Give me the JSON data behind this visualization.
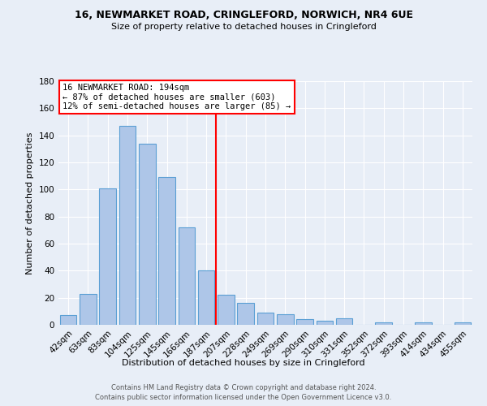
{
  "title": "16, NEWMARKET ROAD, CRINGLEFORD, NORWICH, NR4 6UE",
  "subtitle": "Size of property relative to detached houses in Cringleford",
  "xlabel": "Distribution of detached houses by size in Cringleford",
  "ylabel": "Number of detached properties",
  "categories": [
    "42sqm",
    "63sqm",
    "83sqm",
    "104sqm",
    "125sqm",
    "145sqm",
    "166sqm",
    "187sqm",
    "207sqm",
    "228sqm",
    "249sqm",
    "269sqm",
    "290sqm",
    "310sqm",
    "331sqm",
    "352sqm",
    "372sqm",
    "393sqm",
    "414sqm",
    "434sqm",
    "455sqm"
  ],
  "values": [
    7,
    23,
    101,
    147,
    134,
    109,
    72,
    40,
    22,
    16,
    9,
    8,
    4,
    3,
    5,
    0,
    2,
    0,
    2,
    0,
    2
  ],
  "bar_color": "#aec6e8",
  "bar_edge_color": "#5a9fd4",
  "background_color": "#e8eef7",
  "annotation_line1": "16 NEWMARKET ROAD: 194sqm",
  "annotation_line2": "← 87% of detached houses are smaller (603)",
  "annotation_line3": "12% of semi-detached houses are larger (85) →",
  "red_line_x": 7.5,
  "footer_line1": "Contains HM Land Registry data © Crown copyright and database right 2024.",
  "footer_line2": "Contains public sector information licensed under the Open Government Licence v3.0.",
  "ylim": [
    0,
    180
  ],
  "yticks": [
    0,
    20,
    40,
    60,
    80,
    100,
    120,
    140,
    160,
    180
  ]
}
